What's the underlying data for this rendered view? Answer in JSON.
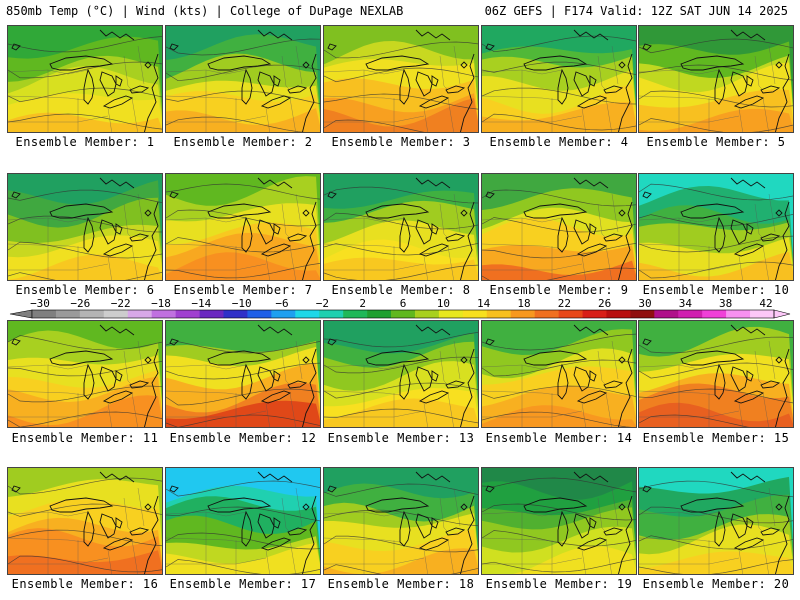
{
  "header": {
    "left": "850mb Temp (°C) | Wind (kts) | College of DuPage NEXLAB",
    "right": "06Z GEFS | F174 Valid: 12Z SAT JUN 14 2025"
  },
  "colorbar": {
    "tick_labels": [
      "−30",
      "−26",
      "−22",
      "−18",
      "−14",
      "−10",
      "−6",
      "−2",
      "2",
      "6",
      "10",
      "14",
      "18",
      "22",
      "26",
      "30",
      "34",
      "38",
      "42"
    ],
    "values": [
      -30,
      -26,
      -22,
      -18,
      -14,
      -10,
      -6,
      -2,
      2,
      6,
      10,
      14,
      18,
      22,
      26,
      30,
      34,
      38,
      42
    ],
    "colors": [
      "#7f7f7f",
      "#9a9a9a",
      "#b4b4b4",
      "#cdcdcd",
      "#d8a8e8",
      "#c070e0",
      "#a040d0",
      "#6a28c0",
      "#3030c8",
      "#2060e8",
      "#20a0f0",
      "#20d8e8",
      "#20d0b0",
      "#20b858",
      "#20a030",
      "#60b820",
      "#a8d020",
      "#e8e820",
      "#f8e020",
      "#f8c020",
      "#f89820",
      "#f07020",
      "#e84818",
      "#d82018",
      "#b81010",
      "#901010",
      "#b0108a",
      "#d020b0",
      "#f040d8",
      "#f890f0",
      "#fcc8f8"
    ]
  },
  "panels": [
    {
      "label": "Ensemble Member: 1",
      "palette": [
        "#30a838",
        "#60b820",
        "#a8d020",
        "#d8e020",
        "#f0e020",
        "#f8c020"
      ]
    },
    {
      "label": "Ensemble Member: 2",
      "palette": [
        "#20a060",
        "#40b040",
        "#a0cc20",
        "#e8e020",
        "#f8d020",
        "#f8b020"
      ]
    },
    {
      "label": "Ensemble Member: 3",
      "palette": [
        "#80c020",
        "#c8d820",
        "#f0e020",
        "#f8c020",
        "#f8a020",
        "#f08020"
      ]
    },
    {
      "label": "Ensemble Member: 4",
      "palette": [
        "#20a860",
        "#50b838",
        "#a8d020",
        "#e8e020",
        "#f8d020",
        "#f8b020"
      ]
    },
    {
      "label": "Ensemble Member: 5",
      "palette": [
        "#309838",
        "#60b820",
        "#c0d820",
        "#f0e020",
        "#f8c020",
        "#f8a020"
      ]
    },
    {
      "label": "Ensemble Member: 6",
      "palette": [
        "#20a060",
        "#40a840",
        "#80c020",
        "#c8d820",
        "#f0e020",
        "#f8c820"
      ]
    },
    {
      "label": "Ensemble Member: 7",
      "palette": [
        "#60b820",
        "#a8d020",
        "#e8e020",
        "#f8c820",
        "#f8a820",
        "#f89020"
      ]
    },
    {
      "label": "Ensemble Member: 8",
      "palette": [
        "#20a060",
        "#40b040",
        "#a0cc20",
        "#e8e020",
        "#f8e020",
        "#f8c820"
      ]
    },
    {
      "label": "Ensemble Member: 9",
      "palette": [
        "#40a840",
        "#90c820",
        "#e0e020",
        "#f8d020",
        "#f8a820",
        "#f07020"
      ]
    },
    {
      "label": "Ensemble Member: 10",
      "palette": [
        "#20d8c0",
        "#20b070",
        "#40b040",
        "#a0cc20",
        "#e8e020",
        "#f8c020"
      ]
    },
    {
      "label": "Ensemble Member: 11",
      "palette": [
        "#60b820",
        "#a8d020",
        "#e8e020",
        "#f8d020",
        "#f8b020",
        "#f89020"
      ]
    },
    {
      "label": "Ensemble Member: 12",
      "palette": [
        "#40b040",
        "#a0cc20",
        "#f0e020",
        "#f8b020",
        "#f08020",
        "#e04818"
      ]
    },
    {
      "label": "Ensemble Member: 13",
      "palette": [
        "#20a060",
        "#40b040",
        "#90c820",
        "#d8e020",
        "#f8e020",
        "#f8c820"
      ]
    },
    {
      "label": "Ensemble Member: 14",
      "palette": [
        "#40b040",
        "#90c820",
        "#e0e020",
        "#f8d020",
        "#f8b020",
        "#f89820"
      ]
    },
    {
      "label": "Ensemble Member: 15",
      "palette": [
        "#40b040",
        "#a0cc20",
        "#f0e020",
        "#f8b020",
        "#f08020",
        "#e86020"
      ]
    },
    {
      "label": "Ensemble Member: 16",
      "palette": [
        "#a0cc20",
        "#e8e020",
        "#f8d020",
        "#f8b020",
        "#f89020",
        "#f07020"
      ]
    },
    {
      "label": "Ensemble Member: 17",
      "palette": [
        "#20c8f0",
        "#20d0b0",
        "#20b060",
        "#60b820",
        "#c0d820",
        "#f0e020"
      ]
    },
    {
      "label": "Ensemble Member: 18",
      "palette": [
        "#20a060",
        "#40b040",
        "#a0cc20",
        "#e8e020",
        "#f8d020",
        "#f8b020"
      ]
    },
    {
      "label": "Ensemble Member: 19",
      "palette": [
        "#208848",
        "#20a040",
        "#50b030",
        "#90c820",
        "#d0e020",
        "#f0e020"
      ]
    },
    {
      "label": "Ensemble Member: 20",
      "palette": [
        "#20d8c0",
        "#20a860",
        "#40b040",
        "#a0cc20",
        "#e8e020",
        "#f8d020"
      ]
    }
  ]
}
